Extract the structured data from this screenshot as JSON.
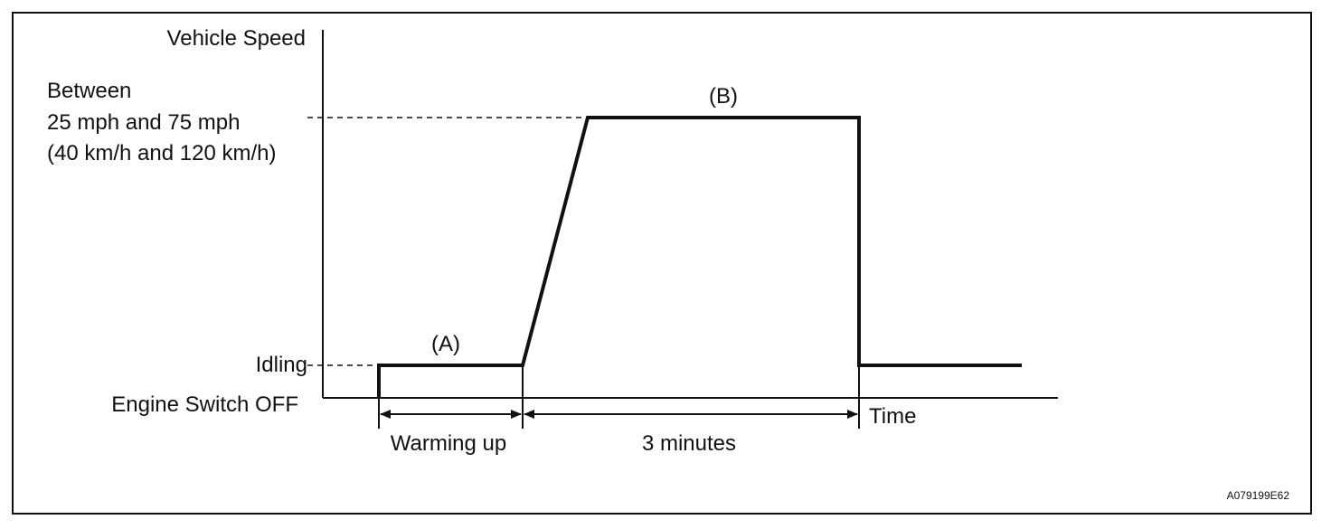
{
  "y_axis": {
    "title": "Vehicle Speed",
    "levels": {
      "speed_range": {
        "lines": [
          "Between",
          "25 mph and 75 mph",
          "(40 km/h and 120 km/h)"
        ]
      },
      "idling": "Idling",
      "engine_off": "Engine Switch OFF"
    }
  },
  "x_axis": {
    "title": "Time"
  },
  "phases": {
    "a": "(A)",
    "b": "(B)"
  },
  "intervals": {
    "warming_up": "Warming up",
    "three_minutes": "3 minutes"
  },
  "figure_id": "A079199E62"
}
